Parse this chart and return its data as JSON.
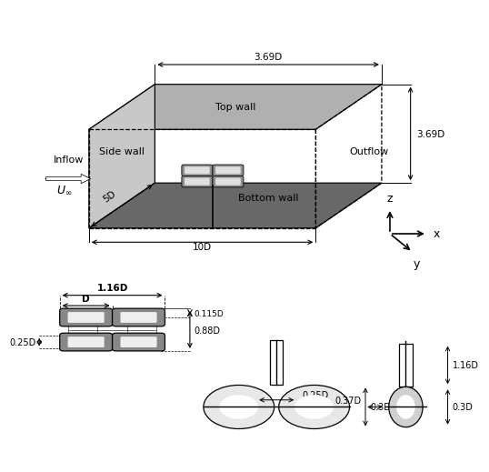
{
  "bg_color": "#ffffff",
  "side_wall_color": "#c8c8c8",
  "top_wall_color": "#b0b0b0",
  "bottom_wall_color": "#686868",
  "dim_labels": {
    "3_69D_top": "3.69D",
    "3_69D_right": "3.69D",
    "10D": "10D",
    "5D": "5D",
    "1_16D": "1.16D",
    "D": "D",
    "0_115D": "0.115D",
    "0_25D_left": "0.25D",
    "0_88D": "0.88D",
    "0_25D_front": "0.25D",
    "0_3D_front": "0.3D",
    "0_37D": "0.37D",
    "1_16D_side": "1.16D",
    "0_3D_side": "0.3D"
  },
  "wall_labels": {
    "top_wall": "Top wall",
    "side_wall": "Side wall",
    "bottom_wall": "Bottom wall",
    "outflow": "Outflow",
    "inflow": "Inflow"
  }
}
